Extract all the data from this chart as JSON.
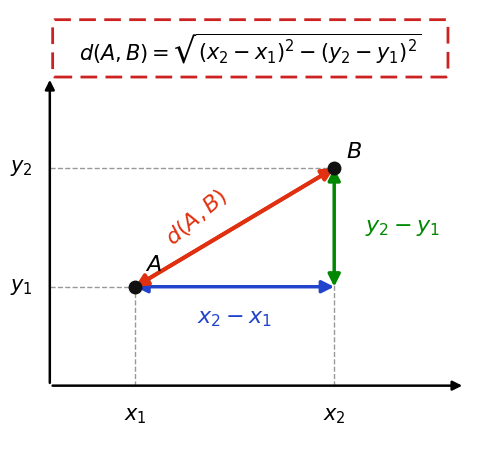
{
  "bg_color": "#ffffff",
  "formula_text": "$d(A,B) = \\sqrt{(x_2 - x_1)^2 - (y_2 - y_1)^2}$",
  "box_color": "#cc2222",
  "point_A": [
    1.5,
    2.5
  ],
  "point_B": [
    5.0,
    5.5
  ],
  "x1_label": "$x_1$",
  "x2_label": "$x_2$",
  "y1_label": "$y_1$",
  "y2_label": "$y_2$",
  "A_label": "$A$",
  "B_label": "$B$",
  "dAB_label": "$d(A,B)$",
  "horiz_label": "$x_2 - x_1$",
  "vert_label": "$y_2 - y_1$",
  "arrow_color_diag": "#e03010",
  "arrow_color_horiz": "#2244cc",
  "arrow_color_vert": "#008800",
  "dashed_color": "#999999",
  "axis_color": "#000000",
  "point_color": "#111111",
  "formula_fontsize": 15,
  "label_fontsize": 16,
  "tick_label_fontsize": 15,
  "dAB_fontsize": 16,
  "xlim": [
    0,
    7.5
  ],
  "ylim": [
    -1.5,
    9.5
  ]
}
